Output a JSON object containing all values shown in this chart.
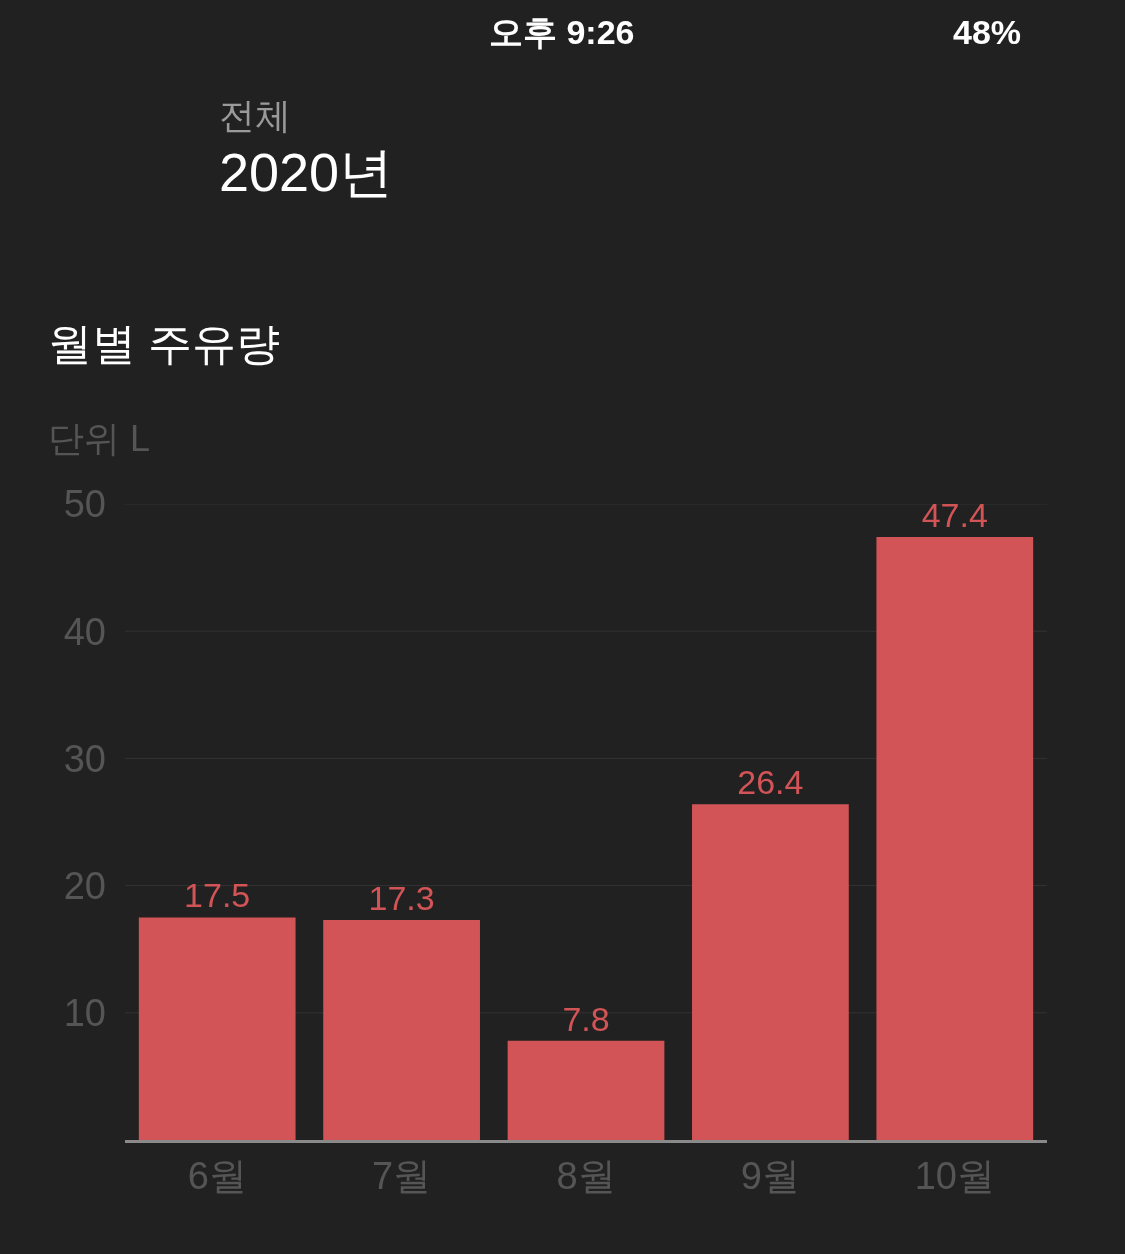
{
  "chart_data": {
    "type": "bar",
    "title": "월별 주유량",
    "subtitle": "단위 L",
    "categories": [
      "6월",
      "7월",
      "8월",
      "9월",
      "10월"
    ],
    "values": [
      17.5,
      17.3,
      7.8,
      26.4,
      47.4
    ],
    "color": "#d35457",
    "ylim": [
      0,
      50
    ],
    "yticks": [
      10,
      20,
      30,
      40,
      50
    ],
    "grid": "y",
    "data_labels": true,
    "annotations": [
      "오후 9:26",
      "48%",
      "전체",
      "2020년"
    ]
  }
}
